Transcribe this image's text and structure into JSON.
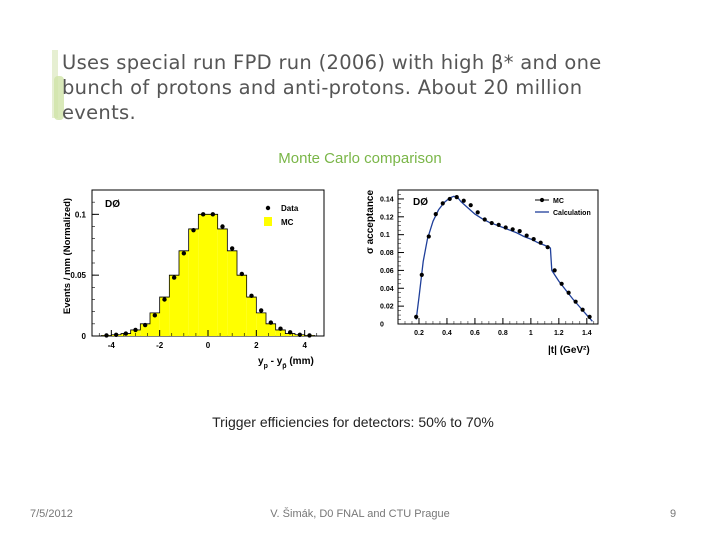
{
  "slide": {
    "bullet": "Uses special run FPD run (2006) with high β* and one bunch of protons and anti-protons.  About 20 million events.",
    "subtitle": "Monte Carlo comparison",
    "caption": "Trigger efficiencies for detectors: 50% to 70%",
    "footer": {
      "date": "7/5/2012",
      "author": "V. Šimák, D0 FNAL and CTU Prague",
      "page": "9"
    }
  },
  "chart_data": [
    {
      "type": "bar",
      "logo": "DØ",
      "ylabel": "Events / mm (Normalized)",
      "xlabel_parts": [
        "y",
        "p",
        " - y",
        "p̄",
        " (mm)"
      ],
      "xlim": [
        -4.8,
        4.8
      ],
      "ylim": [
        0,
        0.12
      ],
      "x_ticks": [
        "-4",
        "-2",
        "0",
        "2",
        "4"
      ],
      "x_tick_values": [
        -4,
        -2,
        0,
        2,
        4
      ],
      "y_ticks": [
        "0",
        "0.05",
        "0.1"
      ],
      "y_tick_values": [
        0,
        0.05,
        0.1
      ],
      "legend": {
        "position": "top-right",
        "entries": [
          "Data",
          "MC"
        ]
      },
      "series": [
        {
          "name": "MC",
          "kind": "histogram",
          "color": "#ffff00",
          "bin_edges": [
            -4.4,
            -4.0,
            -3.6,
            -3.2,
            -2.8,
            -2.4,
            -2.0,
            -1.6,
            -1.2,
            -0.8,
            -0.4,
            0.0,
            0.4,
            0.8,
            1.2,
            1.6,
            2.0,
            2.4,
            2.8,
            3.2,
            3.6,
            4.0,
            4.4
          ],
          "values": [
            0.0005,
            0.001,
            0.002,
            0.005,
            0.01,
            0.019,
            0.032,
            0.05,
            0.07,
            0.088,
            0.1,
            0.1,
            0.088,
            0.07,
            0.05,
            0.032,
            0.019,
            0.01,
            0.005,
            0.002,
            0.001,
            0.0005
          ]
        },
        {
          "name": "Data",
          "kind": "points",
          "color": "#000000",
          "x": [
            -4.2,
            -3.8,
            -3.4,
            -3.0,
            -2.6,
            -2.2,
            -1.8,
            -1.4,
            -1.0,
            -0.6,
            -0.2,
            0.2,
            0.6,
            1.0,
            1.4,
            1.8,
            2.2,
            2.6,
            3.0,
            3.4,
            3.8,
            4.2
          ],
          "y": [
            0.0005,
            0.001,
            0.002,
            0.005,
            0.009,
            0.017,
            0.03,
            0.048,
            0.068,
            0.087,
            0.1,
            0.1,
            0.09,
            0.072,
            0.051,
            0.033,
            0.021,
            0.011,
            0.006,
            0.003,
            0.001,
            0.0005
          ]
        }
      ]
    },
    {
      "type": "line",
      "logo": "DØ",
      "ylabel": "σ acceptance",
      "xlabel": "|t| (GeV²)",
      "xlim": [
        0.05,
        1.48
      ],
      "ylim": [
        0,
        0.15
      ],
      "x_ticks": [
        "0.2",
        "0.4",
        "0.6",
        "0.8",
        "1",
        "1.2",
        "1.4"
      ],
      "x_tick_values": [
        0.2,
        0.4,
        0.6,
        0.8,
        1.0,
        1.2,
        1.4
      ],
      "y_ticks": [
        "0",
        "0.02",
        "0.04",
        "0.06",
        "0.08",
        "0.1",
        "0.12",
        "0.14"
      ],
      "y_tick_values": [
        0,
        0.02,
        0.04,
        0.06,
        0.08,
        0.1,
        0.12,
        0.14
      ],
      "legend": {
        "position": "top-right",
        "entries": [
          "MC",
          "Calculation"
        ]
      },
      "series": [
        {
          "name": "MC",
          "kind": "points",
          "color": "#000000",
          "x": [
            0.18,
            0.22,
            0.27,
            0.32,
            0.37,
            0.42,
            0.47,
            0.52,
            0.57,
            0.62,
            0.67,
            0.72,
            0.77,
            0.82,
            0.87,
            0.92,
            0.97,
            1.02,
            1.07,
            1.12,
            1.17,
            1.22,
            1.27,
            1.32,
            1.37,
            1.42
          ],
          "y": [
            0.008,
            0.055,
            0.098,
            0.123,
            0.135,
            0.14,
            0.142,
            0.138,
            0.133,
            0.125,
            0.117,
            0.113,
            0.111,
            0.108,
            0.106,
            0.104,
            0.099,
            0.095,
            0.091,
            0.086,
            0.06,
            0.045,
            0.035,
            0.025,
            0.016,
            0.008
          ]
        },
        {
          "name": "Calculation",
          "kind": "line",
          "color": "#1f3f9a",
          "x": [
            0.18,
            0.2,
            0.23,
            0.26,
            0.3,
            0.34,
            0.38,
            0.42,
            0.45,
            0.48,
            0.5,
            0.55,
            0.6,
            0.65,
            0.7,
            0.75,
            0.8,
            0.85,
            0.9,
            0.95,
            1.0,
            1.05,
            1.1,
            1.14,
            1.15,
            1.2,
            1.25,
            1.3,
            1.35,
            1.4,
            1.44
          ],
          "y": [
            0.005,
            0.03,
            0.07,
            0.095,
            0.115,
            0.128,
            0.136,
            0.141,
            0.143,
            0.141,
            0.137,
            0.13,
            0.123,
            0.118,
            0.114,
            0.111,
            0.108,
            0.105,
            0.102,
            0.098,
            0.095,
            0.091,
            0.088,
            0.085,
            0.06,
            0.048,
            0.038,
            0.028,
            0.019,
            0.01,
            0.003
          ]
        }
      ]
    }
  ]
}
